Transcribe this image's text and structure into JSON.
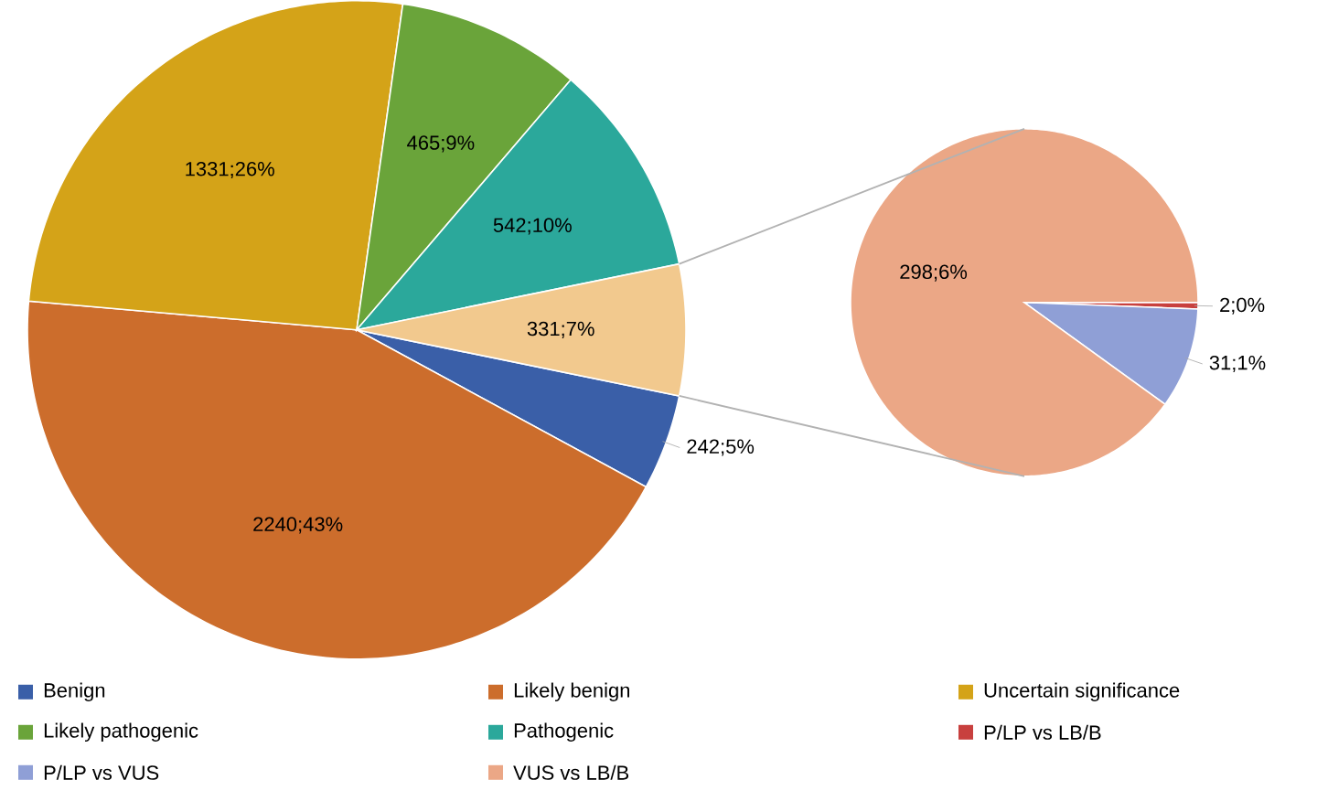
{
  "chart_data": [
    {
      "type": "pie",
      "categories": [
        "Benign",
        "Likely benign",
        "Uncertain significance",
        "Likely pathogenic",
        "Pathogenic",
        null
      ],
      "values": [
        242,
        2240,
        1331,
        465,
        542,
        331
      ],
      "value_labels": [
        "242;5%",
        "2240;43%",
        "1331;26%",
        "465;9%",
        "542;10%",
        "331;7%"
      ],
      "colors": [
        "#3a5fa8",
        "#cc6d2c",
        "#d4a318",
        "#6aa43a",
        "#2ba89b",
        "#f2c98e"
      ],
      "legend": "bottom"
    },
    {
      "type": "pie",
      "categories": [
        "P/LP vs LB/B",
        "P/LP vs VUS",
        "VUS vs LB/B"
      ],
      "values": [
        2,
        31,
        298
      ],
      "value_labels": [
        "2;0%",
        "31;1%",
        "298;6%"
      ],
      "colors": [
        "#c8403e",
        "#8f9fd6",
        "#eba786"
      ],
      "legend": "bottom"
    }
  ]
}
